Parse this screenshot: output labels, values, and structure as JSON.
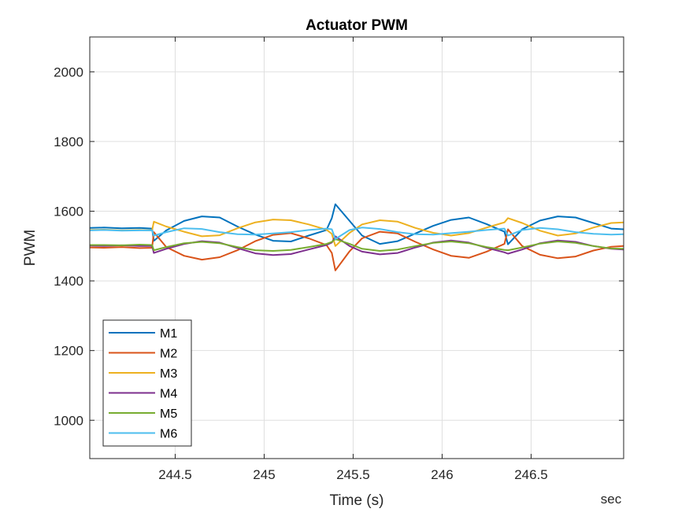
{
  "chart_data": {
    "type": "line",
    "title": "Actuator PWM",
    "xlabel": "Time (s)",
    "ylabel": "PWM",
    "x_unit_label": "sec",
    "xlim": [
      244.02,
      247.02
    ],
    "ylim": [
      890,
      2100
    ],
    "xticks": [
      244.5,
      245,
      245.5,
      246,
      246.5
    ],
    "xtick_labels": [
      "244.5",
      "245",
      "245.5",
      "246",
      "246.5"
    ],
    "yticks": [
      1000,
      1200,
      1400,
      1600,
      1800,
      2000
    ],
    "ytick_labels": [
      "1000",
      "1200",
      "1400",
      "1600",
      "1800",
      "2000"
    ],
    "grid": true,
    "legend_position": "bottom-left",
    "series": [
      {
        "name": "M1",
        "color": "#0072BD",
        "x": [
          244.02,
          244.1,
          244.2,
          244.3,
          244.37,
          244.38,
          244.45,
          244.55,
          244.65,
          244.75,
          244.85,
          244.95,
          245.05,
          245.15,
          245.25,
          245.35,
          245.38,
          245.4,
          245.48,
          245.55,
          245.65,
          245.75,
          245.85,
          245.95,
          246.05,
          246.15,
          246.25,
          246.35,
          246.37,
          246.45,
          246.55,
          246.65,
          246.75,
          246.85,
          246.95,
          247.02
        ],
        "y": [
          1552,
          1553,
          1551,
          1552,
          1550,
          1515,
          1545,
          1572,
          1585,
          1582,
          1556,
          1533,
          1515,
          1513,
          1530,
          1546,
          1580,
          1620,
          1572,
          1530,
          1506,
          1514,
          1536,
          1558,
          1575,
          1582,
          1563,
          1541,
          1505,
          1548,
          1573,
          1585,
          1582,
          1566,
          1550,
          1548
        ]
      },
      {
        "name": "M2",
        "color": "#D95319",
        "x": [
          244.02,
          244.1,
          244.2,
          244.3,
          244.37,
          244.38,
          244.45,
          244.55,
          244.65,
          244.75,
          244.85,
          244.95,
          245.05,
          245.15,
          245.25,
          245.35,
          245.38,
          245.4,
          245.48,
          245.55,
          245.65,
          245.75,
          245.85,
          245.95,
          246.05,
          246.15,
          246.25,
          246.35,
          246.37,
          246.45,
          246.55,
          246.65,
          246.75,
          246.85,
          246.95,
          247.02
        ],
        "y": [
          1496,
          1495,
          1497,
          1494,
          1495,
          1540,
          1497,
          1472,
          1461,
          1468,
          1488,
          1514,
          1532,
          1537,
          1522,
          1503,
          1480,
          1430,
          1485,
          1522,
          1541,
          1536,
          1512,
          1490,
          1472,
          1466,
          1484,
          1506,
          1548,
          1500,
          1475,
          1465,
          1470,
          1487,
          1498,
          1500
        ]
      },
      {
        "name": "M3",
        "color": "#EDB120",
        "x": [
          244.02,
          244.1,
          244.2,
          244.3,
          244.37,
          244.38,
          244.45,
          244.55,
          244.65,
          244.75,
          244.85,
          244.95,
          245.05,
          245.15,
          245.25,
          245.35,
          245.38,
          245.4,
          245.48,
          245.55,
          245.65,
          245.75,
          245.85,
          245.95,
          246.05,
          246.15,
          246.25,
          246.35,
          246.37,
          246.45,
          246.55,
          246.65,
          246.75,
          246.85,
          246.95,
          247.02
        ],
        "y": [
          1546,
          1547,
          1545,
          1546,
          1545,
          1570,
          1556,
          1541,
          1528,
          1531,
          1551,
          1568,
          1576,
          1574,
          1562,
          1547,
          1535,
          1500,
          1538,
          1562,
          1574,
          1570,
          1552,
          1538,
          1530,
          1537,
          1553,
          1568,
          1580,
          1566,
          1544,
          1530,
          1536,
          1553,
          1566,
          1568
        ]
      },
      {
        "name": "M4",
        "color": "#7E2F8E",
        "x": [
          244.02,
          244.1,
          244.2,
          244.3,
          244.37,
          244.38,
          244.45,
          244.55,
          244.65,
          244.75,
          244.85,
          244.95,
          245.05,
          245.15,
          245.25,
          245.35,
          245.38,
          245.4,
          245.48,
          245.55,
          245.65,
          245.75,
          245.85,
          245.95,
          246.05,
          246.15,
          246.25,
          246.35,
          246.37,
          246.45,
          246.55,
          246.65,
          246.75,
          246.85,
          246.95,
          247.02
        ],
        "y": [
          1501,
          1500,
          1502,
          1500,
          1500,
          1480,
          1492,
          1506,
          1514,
          1510,
          1494,
          1479,
          1474,
          1477,
          1490,
          1503,
          1510,
          1528,
          1500,
          1484,
          1476,
          1480,
          1496,
          1510,
          1516,
          1510,
          1495,
          1482,
          1478,
          1490,
          1508,
          1516,
          1512,
          1500,
          1492,
          1490
        ]
      },
      {
        "name": "M5",
        "color": "#77AC30",
        "x": [
          244.02,
          244.1,
          244.2,
          244.3,
          244.37,
          244.38,
          244.45,
          244.55,
          244.65,
          244.75,
          244.85,
          244.95,
          245.05,
          245.15,
          245.25,
          245.35,
          245.38,
          245.4,
          245.48,
          245.55,
          245.65,
          245.75,
          245.85,
          245.95,
          246.05,
          246.15,
          246.25,
          246.35,
          246.37,
          246.45,
          246.55,
          246.65,
          246.75,
          246.85,
          246.95,
          247.02
        ],
        "y": [
          1503,
          1503,
          1502,
          1504,
          1503,
          1488,
          1497,
          1508,
          1512,
          1508,
          1497,
          1488,
          1486,
          1489,
          1497,
          1506,
          1512,
          1520,
          1506,
          1492,
          1486,
          1490,
          1500,
          1509,
          1513,
          1508,
          1497,
          1489,
          1488,
          1496,
          1507,
          1513,
          1509,
          1500,
          1493,
          1492
        ]
      },
      {
        "name": "M6",
        "color": "#4DBEEE",
        "x": [
          244.02,
          244.1,
          244.2,
          244.3,
          244.37,
          244.38,
          244.45,
          244.55,
          244.65,
          244.75,
          244.85,
          244.95,
          245.05,
          245.15,
          245.25,
          245.35,
          245.38,
          245.4,
          245.48,
          245.55,
          245.65,
          245.75,
          245.85,
          245.95,
          246.05,
          246.15,
          246.25,
          246.35,
          246.37,
          246.45,
          246.55,
          246.65,
          246.75,
          246.85,
          246.95,
          247.02
        ],
        "y": [
          1545,
          1546,
          1544,
          1545,
          1545,
          1530,
          1540,
          1551,
          1549,
          1540,
          1534,
          1533,
          1536,
          1540,
          1546,
          1550,
          1548,
          1520,
          1546,
          1553,
          1549,
          1540,
          1534,
          1533,
          1537,
          1541,
          1546,
          1550,
          1530,
          1546,
          1552,
          1548,
          1540,
          1535,
          1533,
          1534
        ]
      }
    ]
  }
}
